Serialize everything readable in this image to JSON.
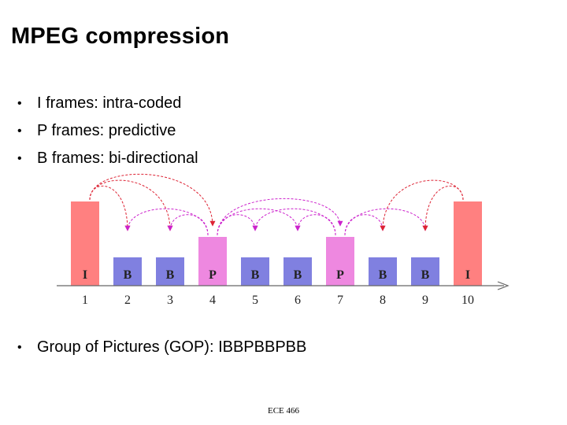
{
  "slide": {
    "title": "MPEG compression",
    "bullets": [
      "I frames: intra-coded",
      "P frames: predictive",
      "B frames: bi-directional"
    ],
    "bullet_glyph": "•",
    "gop_bullet": "Group of Pictures (GOP): IBBPBBPBB",
    "footer": "ECE 466"
  },
  "diagram": {
    "frames": [
      {
        "type": "I",
        "number": "1"
      },
      {
        "type": "B",
        "number": "2"
      },
      {
        "type": "B",
        "number": "3"
      },
      {
        "type": "P",
        "number": "4"
      },
      {
        "type": "B",
        "number": "5"
      },
      {
        "type": "B",
        "number": "6"
      },
      {
        "type": "P",
        "number": "7"
      },
      {
        "type": "B",
        "number": "8"
      },
      {
        "type": "B",
        "number": "9"
      },
      {
        "type": "I",
        "number": "10"
      }
    ],
    "colors": {
      "I": "#ff8080",
      "P": "#ee88e0",
      "B": "#8080e0",
      "red_arrow": "#dd2233",
      "magenta_arrow": "#cc22cc"
    },
    "arrows": [
      {
        "from": 1,
        "to": 2,
        "color": "red_arrow"
      },
      {
        "from": 1,
        "to": 3,
        "color": "red_arrow"
      },
      {
        "from": 1,
        "to": 4,
        "color": "red_arrow"
      },
      {
        "from": 4,
        "to": 2,
        "color": "magenta_arrow"
      },
      {
        "from": 4,
        "to": 3,
        "color": "magenta_arrow"
      },
      {
        "from": 4,
        "to": 5,
        "color": "magenta_arrow"
      },
      {
        "from": 4,
        "to": 6,
        "color": "magenta_arrow"
      },
      {
        "from": 4,
        "to": 7,
        "color": "magenta_arrow"
      },
      {
        "from": 7,
        "to": 5,
        "color": "magenta_arrow"
      },
      {
        "from": 7,
        "to": 6,
        "color": "magenta_arrow"
      },
      {
        "from": 7,
        "to": 8,
        "color": "magenta_arrow"
      },
      {
        "from": 7,
        "to": 9,
        "color": "magenta_arrow"
      },
      {
        "from": 10,
        "to": 8,
        "color": "red_arrow"
      },
      {
        "from": 10,
        "to": 9,
        "color": "red_arrow"
      }
    ]
  }
}
